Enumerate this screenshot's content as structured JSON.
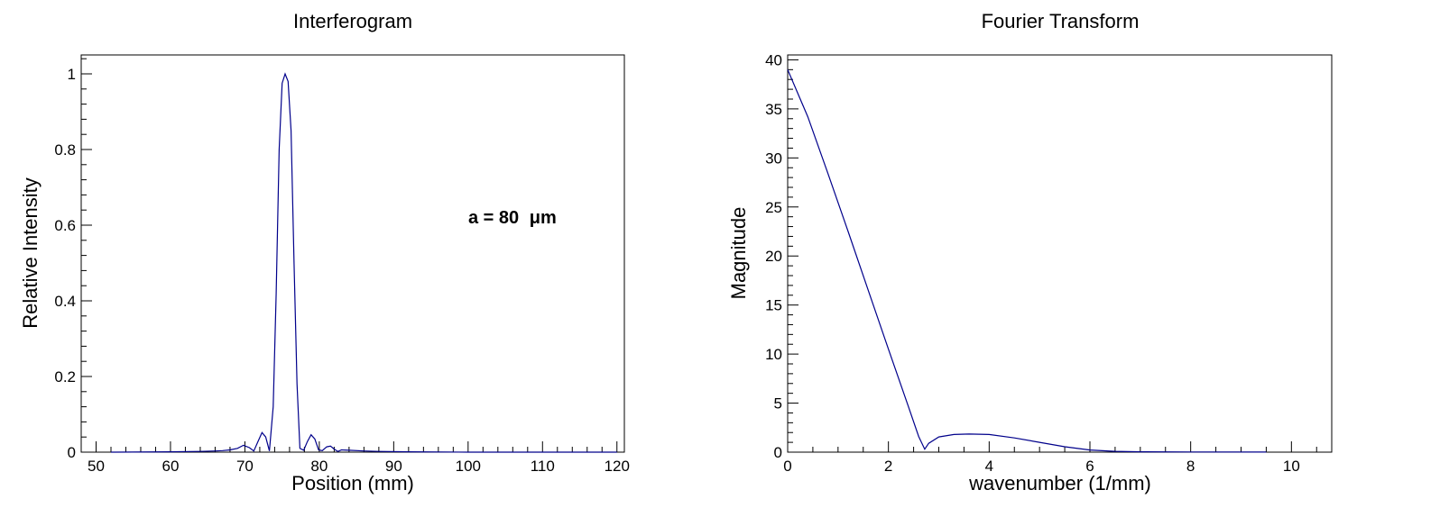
{
  "chart_data": [
    {
      "type": "line",
      "title": "Interferogram",
      "xlabel": "Position (mm)",
      "ylabel": "Relative Intensity",
      "xlim": [
        48,
        121
      ],
      "ylim": [
        0,
        1.05
      ],
      "xticks": [
        50,
        60,
        70,
        80,
        90,
        100,
        110,
        120
      ],
      "xtick_labels": [
        "50",
        "60",
        "70",
        "80",
        "90",
        "100",
        "110",
        "120"
      ],
      "yticks": [
        0,
        0.2,
        0.4,
        0.6,
        0.8,
        1
      ],
      "ytick_labels": [
        "0",
        "0.2",
        "0.4",
        "0.6",
        "0.8",
        "1"
      ],
      "annotation": "a = 80",
      "annotation_unit": "μm",
      "grid": false,
      "color": "#00008b",
      "series": [
        {
          "x": [
            52,
            60,
            64,
            66,
            67,
            68,
            69,
            69.8,
            70.6,
            71.2,
            71.8,
            72.3,
            72.8,
            73.3,
            73.8,
            74.2,
            74.6,
            75.0,
            75.4,
            75.8,
            76.2,
            76.6,
            77.0,
            77.4,
            77.9,
            78.4,
            78.9,
            79.4,
            79.9,
            80.4,
            81.0,
            81.5,
            82.0,
            82.5,
            83.0,
            84,
            86,
            88,
            92,
            100,
            110,
            120
          ],
          "y": [
            0,
            0.001,
            0.002,
            0.003,
            0.004,
            0.006,
            0.01,
            0.018,
            0.012,
            0.003,
            0.03,
            0.052,
            0.04,
            0.003,
            0.12,
            0.42,
            0.8,
            0.975,
            1.0,
            0.98,
            0.85,
            0.5,
            0.18,
            0.01,
            0.005,
            0.028,
            0.046,
            0.035,
            0.006,
            0.004,
            0.014,
            0.016,
            0.008,
            0.002,
            0.006,
            0.005,
            0.003,
            0.002,
            0.001,
            0,
            0,
            0
          ]
        }
      ]
    },
    {
      "type": "line",
      "title": "Fourier Transform",
      "xlabel": "wavenumber (1/mm)",
      "ylabel": "Magnitude",
      "xlim": [
        0,
        10.8
      ],
      "ylim": [
        0,
        40.5
      ],
      "xticks": [
        0,
        2,
        4,
        6,
        8,
        10
      ],
      "xtick_labels": [
        "0",
        "2",
        "4",
        "6",
        "8",
        "10"
      ],
      "yticks": [
        0,
        5,
        10,
        15,
        20,
        25,
        30,
        35,
        40
      ],
      "ytick_labels": [
        "0",
        "5",
        "10",
        "15",
        "20",
        "25",
        "30",
        "35",
        "40"
      ],
      "grid": false,
      "color": "#00008b",
      "series": [
        {
          "x": [
            0,
            0.4,
            0.8,
            1.2,
            1.6,
            2.0,
            2.4,
            2.6,
            2.72,
            2.8,
            3.0,
            3.3,
            3.6,
            4.0,
            4.5,
            5.0,
            5.5,
            6.0,
            6.5,
            7.0,
            8.0,
            9.5
          ],
          "y": [
            39,
            34.2,
            28.4,
            22.5,
            16.5,
            10.5,
            4.6,
            1.6,
            0.3,
            0.9,
            1.55,
            1.8,
            1.85,
            1.8,
            1.45,
            1.0,
            0.55,
            0.22,
            0.08,
            0.04,
            0.02,
            0.01
          ]
        }
      ]
    }
  ]
}
